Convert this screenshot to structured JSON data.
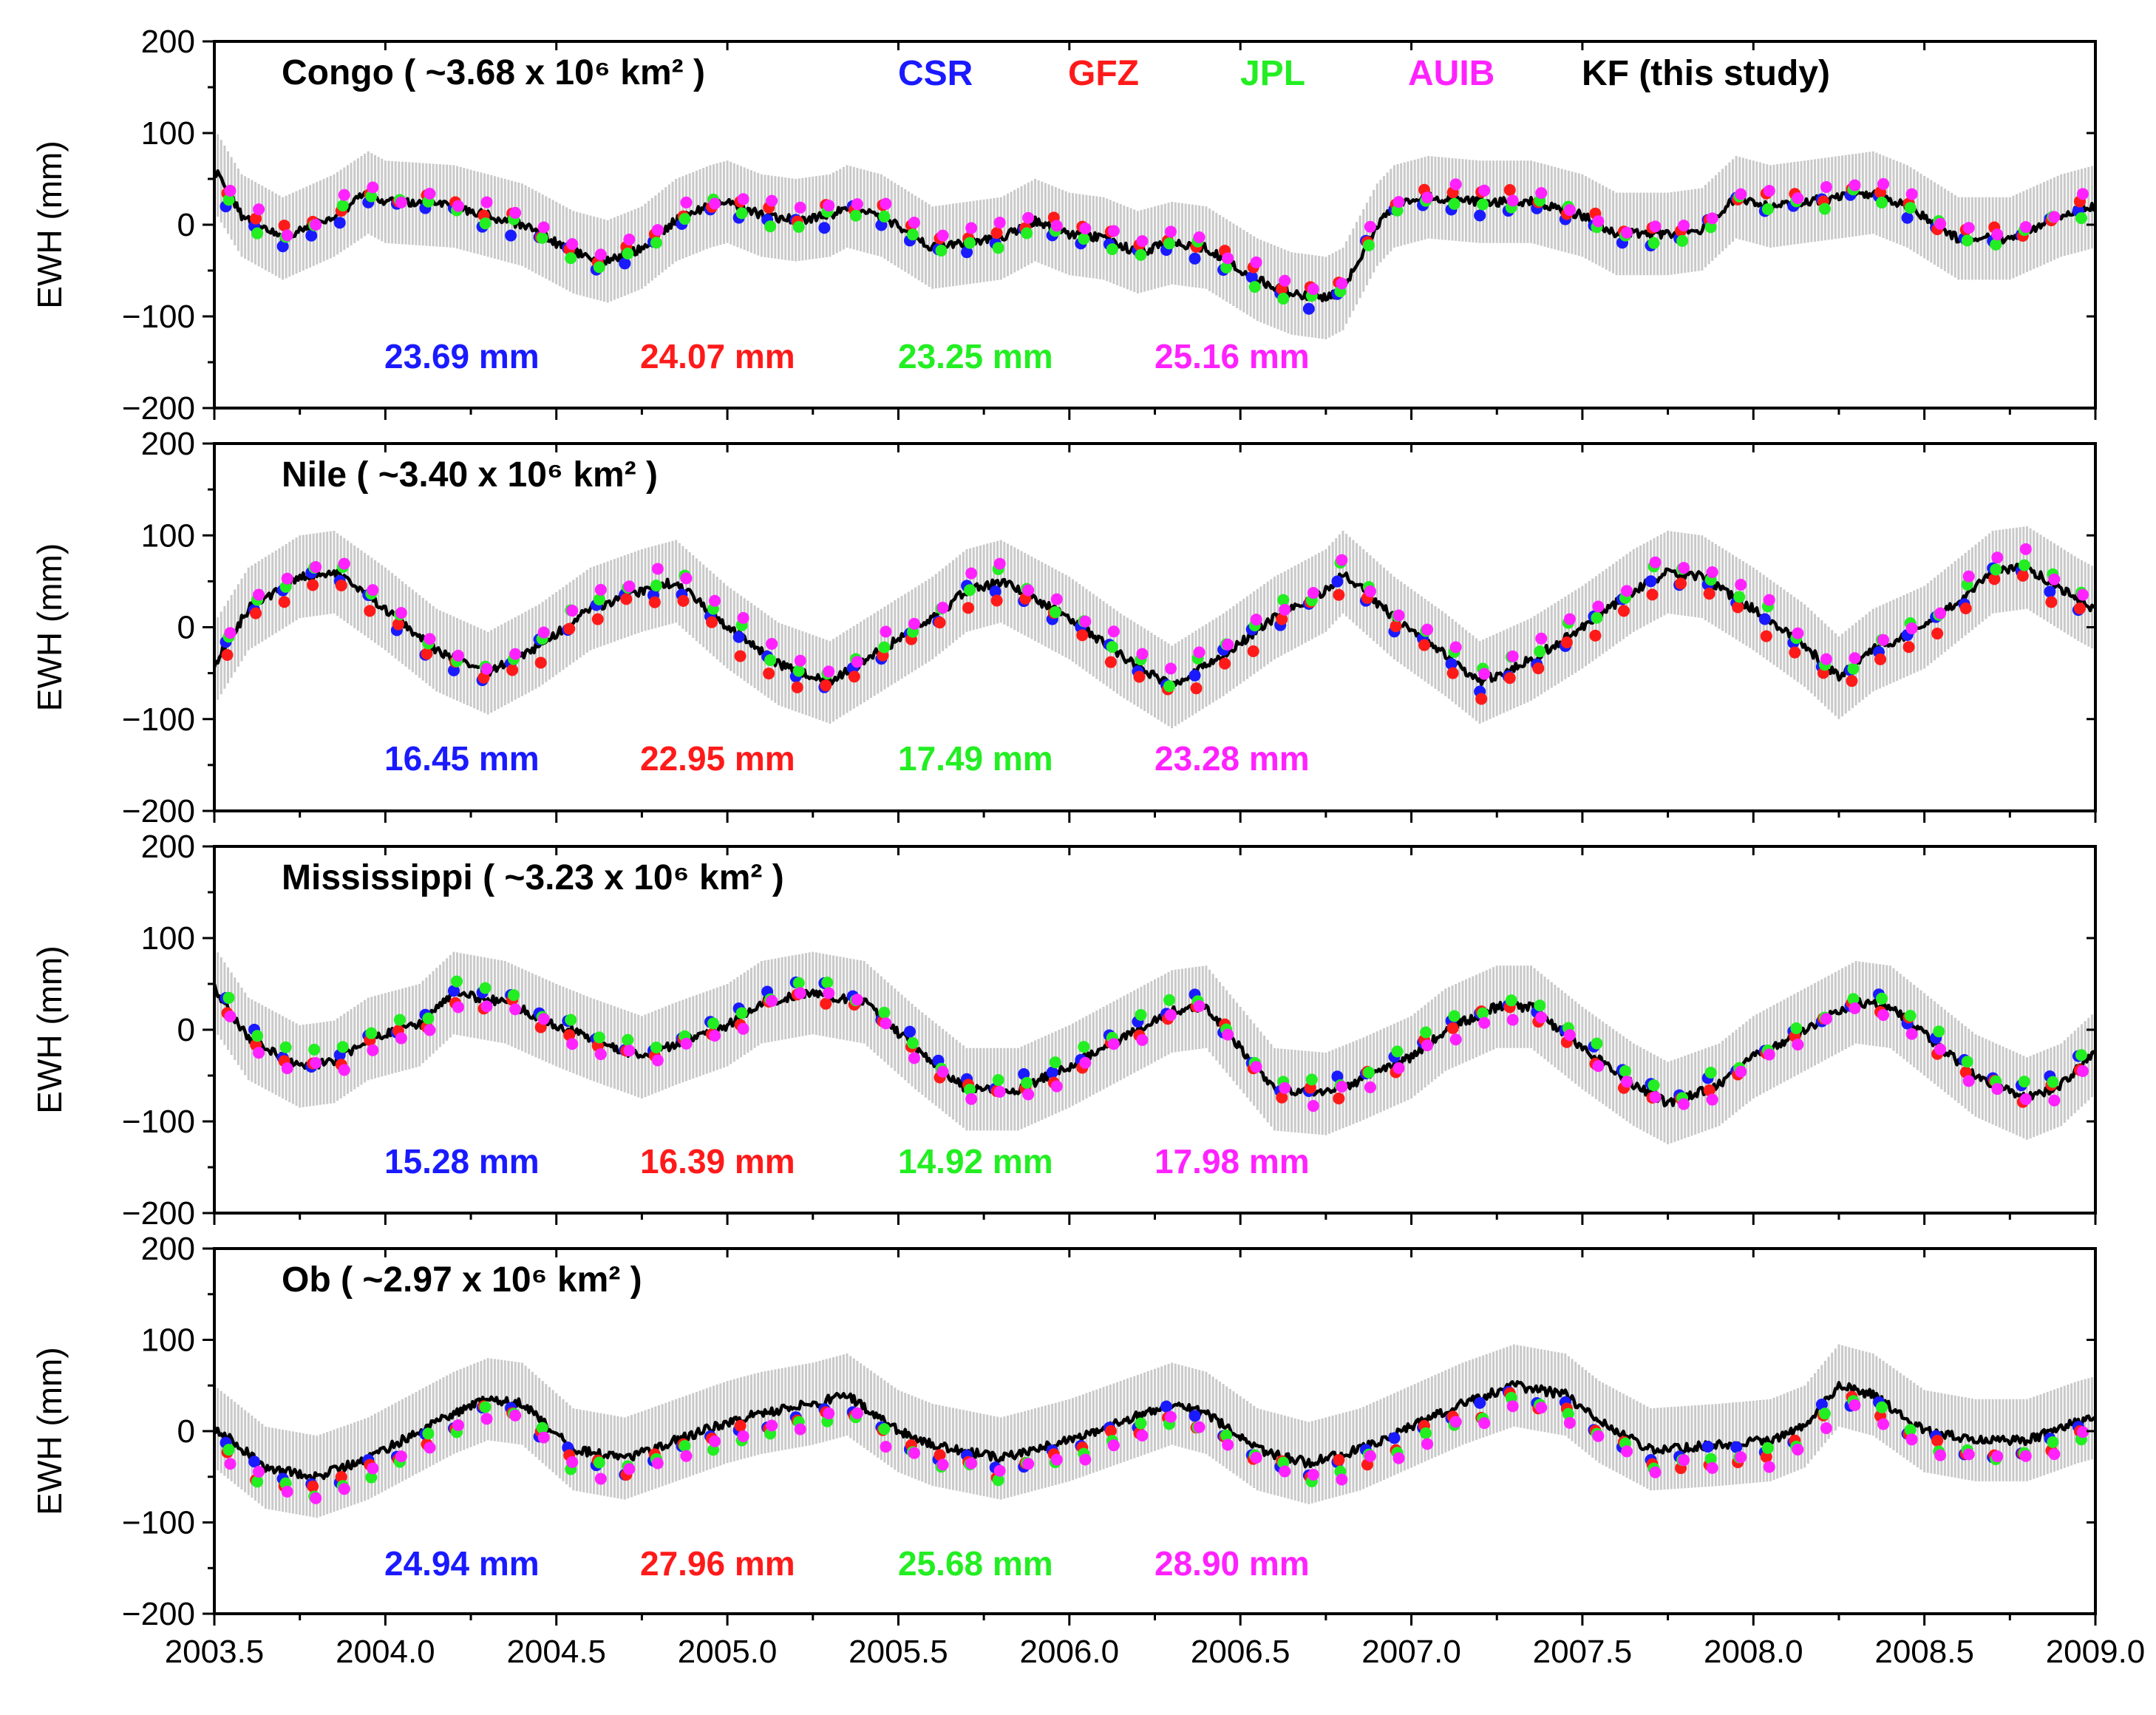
{
  "colors": {
    "CSR": "#1a1aff",
    "GFZ": "#ff1a1a",
    "JPL": "#22ee22",
    "AUIB": "#ff22ff",
    "KF": "#000000"
  },
  "legend": [
    {
      "key": "CSR",
      "label": "CSR"
    },
    {
      "key": "GFZ",
      "label": "GFZ"
    },
    {
      "key": "JPL",
      "label": "JPL"
    },
    {
      "key": "AUIB",
      "label": "AUIB"
    },
    {
      "key": "KF",
      "label": "KF (this study)"
    }
  ],
  "chart_data": [
    {
      "type": "line",
      "basin": "Congo",
      "title": "Congo ( ~3.68 x 10⁶ km² )",
      "xlabel": "",
      "ylabel": "EWH (mm)",
      "xlim": [
        2003.5,
        2009.0
      ],
      "ylim": [
        -200,
        200
      ],
      "x_ticks": [
        "2003.5",
        "2004.0",
        "2004.5",
        "2005.0",
        "2005.5",
        "2006.0",
        "2006.5",
        "2007.0",
        "2007.5",
        "2008.0",
        "2008.5",
        "2009.0"
      ],
      "y_ticks": [
        "200",
        "100",
        "0",
        "−100",
        "−200"
      ],
      "error_band_mm": 45,
      "kf_anchors": [
        [
          2003.5,
          60
        ],
        [
          2003.58,
          10
        ],
        [
          2003.7,
          -15
        ],
        [
          2003.85,
          10
        ],
        [
          2003.95,
          35
        ],
        [
          2004.0,
          25
        ],
        [
          2004.2,
          20
        ],
        [
          2004.4,
          0
        ],
        [
          2004.55,
          -30
        ],
        [
          2004.65,
          -40
        ],
        [
          2004.75,
          -25
        ],
        [
          2004.85,
          5
        ],
        [
          2004.95,
          20
        ],
        [
          2005.0,
          25
        ],
        [
          2005.1,
          10
        ],
        [
          2005.2,
          5
        ],
        [
          2005.3,
          10
        ],
        [
          2005.35,
          20
        ],
        [
          2005.45,
          10
        ],
        [
          2005.6,
          -25
        ],
        [
          2005.7,
          -20
        ],
        [
          2005.8,
          -15
        ],
        [
          2005.9,
          5
        ],
        [
          2006.0,
          -10
        ],
        [
          2006.1,
          -15
        ],
        [
          2006.2,
          -30
        ],
        [
          2006.3,
          -20
        ],
        [
          2006.4,
          -25
        ],
        [
          2006.55,
          -60
        ],
        [
          2006.65,
          -75
        ],
        [
          2006.75,
          -80
        ],
        [
          2006.8,
          -70
        ],
        [
          2006.9,
          0
        ],
        [
          2006.95,
          20
        ],
        [
          2007.05,
          30
        ],
        [
          2007.2,
          25
        ],
        [
          2007.35,
          25
        ],
        [
          2007.5,
          10
        ],
        [
          2007.6,
          -10
        ],
        [
          2007.75,
          -10
        ],
        [
          2007.85,
          -5
        ],
        [
          2007.95,
          30
        ],
        [
          2008.05,
          20
        ],
        [
          2008.15,
          25
        ],
        [
          2008.25,
          30
        ],
        [
          2008.35,
          35
        ],
        [
          2008.45,
          20
        ],
        [
          2008.6,
          -15
        ],
        [
          2008.75,
          -15
        ],
        [
          2008.9,
          10
        ],
        [
          2009.0,
          20
        ]
      ],
      "obs_offsets": {
        "CSR": -6,
        "GFZ": 5,
        "JPL": -2,
        "AUIB": 9
      },
      "rms": {
        "CSR": "23.69 mm",
        "GFZ": "24.07 mm",
        "JPL": "23.25 mm",
        "AUIB": "25.16 mm"
      }
    },
    {
      "type": "line",
      "basin": "Nile",
      "title": "Nile ( ~3.40 x 10⁶ km² )",
      "xlabel": "",
      "ylabel": "EWH (mm)",
      "xlim": [
        2003.5,
        2009.0
      ],
      "ylim": [
        -200,
        200
      ],
      "x_ticks": [
        "2003.5",
        "2004.0",
        "2004.5",
        "2005.0",
        "2005.5",
        "2006.0",
        "2006.5",
        "2007.0",
        "2007.5",
        "2008.0",
        "2008.5",
        "2009.0"
      ],
      "y_ticks": [
        "200",
        "100",
        "0",
        "−100",
        "−200"
      ],
      "error_band_mm": 45,
      "kf_anchors": [
        [
          2003.5,
          -40
        ],
        [
          2003.6,
          20
        ],
        [
          2003.75,
          55
        ],
        [
          2003.85,
          60
        ],
        [
          2004.0,
          20
        ],
        [
          2004.15,
          -25
        ],
        [
          2004.3,
          -50
        ],
        [
          2004.45,
          -20
        ],
        [
          2004.6,
          20
        ],
        [
          2004.75,
          40
        ],
        [
          2004.85,
          50
        ],
        [
          2005.0,
          0
        ],
        [
          2005.15,
          -40
        ],
        [
          2005.3,
          -60
        ],
        [
          2005.45,
          -25
        ],
        [
          2005.6,
          10
        ],
        [
          2005.7,
          40
        ],
        [
          2005.8,
          50
        ],
        [
          2006.0,
          10
        ],
        [
          2006.15,
          -30
        ],
        [
          2006.3,
          -65
        ],
        [
          2006.45,
          -30
        ],
        [
          2006.6,
          10
        ],
        [
          2006.75,
          40
        ],
        [
          2006.8,
          60
        ],
        [
          2006.95,
          10
        ],
        [
          2007.1,
          -30
        ],
        [
          2007.2,
          -60
        ],
        [
          2007.35,
          -35
        ],
        [
          2007.5,
          0
        ],
        [
          2007.65,
          40
        ],
        [
          2007.75,
          60
        ],
        [
          2007.85,
          55
        ],
        [
          2008.0,
          20
        ],
        [
          2008.15,
          -20
        ],
        [
          2008.25,
          -55
        ],
        [
          2008.35,
          -25
        ],
        [
          2008.5,
          0
        ],
        [
          2008.6,
          30
        ],
        [
          2008.7,
          60
        ],
        [
          2008.8,
          65
        ],
        [
          2008.95,
          30
        ],
        [
          2009.0,
          20
        ]
      ],
      "obs_offsets": {
        "CSR": -4,
        "GFZ": -12,
        "JPL": 6,
        "AUIB": 12
      },
      "rms": {
        "CSR": "16.45 mm",
        "GFZ": "22.95 mm",
        "JPL": "17.49 mm",
        "AUIB": "23.28 mm"
      }
    },
    {
      "type": "line",
      "basin": "Mississippi",
      "title": "Mississippi ( ~3.23 x 10⁶ km² )",
      "xlabel": "",
      "ylabel": "EWH (mm)",
      "xlim": [
        2003.5,
        2009.0
      ],
      "ylim": [
        -200,
        200
      ],
      "x_ticks": [
        "2003.5",
        "2004.0",
        "2004.5",
        "2005.0",
        "2005.5",
        "2006.0",
        "2006.5",
        "2007.0",
        "2007.5",
        "2008.0",
        "2008.5",
        "2009.0"
      ],
      "y_ticks": [
        "200",
        "100",
        "0",
        "−100",
        "−200"
      ],
      "error_band_mm": 45,
      "kf_anchors": [
        [
          2003.5,
          45
        ],
        [
          2003.6,
          -10
        ],
        [
          2003.75,
          -40
        ],
        [
          2003.85,
          -35
        ],
        [
          2003.95,
          -10
        ],
        [
          2004.1,
          5
        ],
        [
          2004.2,
          40
        ],
        [
          2004.35,
          30
        ],
        [
          2004.5,
          5
        ],
        [
          2004.6,
          -10
        ],
        [
          2004.75,
          -30
        ],
        [
          2004.85,
          -15
        ],
        [
          2005.0,
          5
        ],
        [
          2005.1,
          30
        ],
        [
          2005.25,
          40
        ],
        [
          2005.4,
          30
        ],
        [
          2005.55,
          -20
        ],
        [
          2005.7,
          -65
        ],
        [
          2005.85,
          -65
        ],
        [
          2006.0,
          -40
        ],
        [
          2006.15,
          -10
        ],
        [
          2006.3,
          20
        ],
        [
          2006.4,
          25
        ],
        [
          2006.5,
          -20
        ],
        [
          2006.6,
          -65
        ],
        [
          2006.75,
          -70
        ],
        [
          2006.85,
          -55
        ],
        [
          2007.0,
          -30
        ],
        [
          2007.1,
          0
        ],
        [
          2007.25,
          25
        ],
        [
          2007.35,
          25
        ],
        [
          2007.5,
          -20
        ],
        [
          2007.65,
          -60
        ],
        [
          2007.75,
          -80
        ],
        [
          2007.9,
          -60
        ],
        [
          2008.0,
          -30
        ],
        [
          2008.15,
          0
        ],
        [
          2008.3,
          30
        ],
        [
          2008.4,
          25
        ],
        [
          2008.55,
          -20
        ],
        [
          2008.65,
          -50
        ],
        [
          2008.8,
          -75
        ],
        [
          2008.9,
          -60
        ],
        [
          2009.0,
          -25
        ]
      ],
      "obs_offsets": {
        "CSR": 6,
        "GFZ": -2,
        "JPL": 8,
        "AUIB": -6
      },
      "rms": {
        "CSR": "15.28 mm",
        "GFZ": "16.39 mm",
        "JPL": "14.92 mm",
        "AUIB": "17.98 mm"
      }
    },
    {
      "type": "line",
      "basin": "Ob",
      "title": "Ob ( ~2.97 x 10⁶ km² )",
      "xlabel": "",
      "ylabel": "EWH (mm)",
      "xlim": [
        2003.5,
        2009.0
      ],
      "ylim": [
        -200,
        200
      ],
      "x_ticks": [
        "2003.5",
        "2004.0",
        "2004.5",
        "2005.0",
        "2005.5",
        "2006.0",
        "2006.5",
        "2007.0",
        "2007.5",
        "2008.0",
        "2008.5",
        "2009.0"
      ],
      "y_ticks": [
        "200",
        "100",
        "0",
        "−100",
        "−200"
      ],
      "error_band_mm": 45,
      "kf_anchors": [
        [
          2003.5,
          5
        ],
        [
          2003.65,
          -40
        ],
        [
          2003.8,
          -50
        ],
        [
          2003.95,
          -30
        ],
        [
          2004.1,
          0
        ],
        [
          2004.2,
          20
        ],
        [
          2004.3,
          35
        ],
        [
          2004.4,
          30
        ],
        [
          2004.55,
          -20
        ],
        [
          2004.7,
          -30
        ],
        [
          2004.85,
          -10
        ],
        [
          2005.0,
          10
        ],
        [
          2005.1,
          20
        ],
        [
          2005.25,
          30
        ],
        [
          2005.35,
          40
        ],
        [
          2005.5,
          0
        ],
        [
          2005.6,
          -15
        ],
        [
          2005.8,
          -30
        ],
        [
          2006.0,
          -10
        ],
        [
          2006.15,
          10
        ],
        [
          2006.3,
          30
        ],
        [
          2006.4,
          20
        ],
        [
          2006.55,
          -20
        ],
        [
          2006.7,
          -35
        ],
        [
          2006.85,
          -20
        ],
        [
          2007.0,
          5
        ],
        [
          2007.15,
          30
        ],
        [
          2007.3,
          50
        ],
        [
          2007.45,
          40
        ],
        [
          2007.55,
          10
        ],
        [
          2007.7,
          -20
        ],
        [
          2007.9,
          -15
        ],
        [
          2008.05,
          -10
        ],
        [
          2008.15,
          5
        ],
        [
          2008.25,
          50
        ],
        [
          2008.35,
          40
        ],
        [
          2008.5,
          0
        ],
        [
          2008.65,
          -10
        ],
        [
          2008.8,
          -10
        ],
        [
          2008.95,
          10
        ],
        [
          2009.0,
          15
        ]
      ],
      "obs_offsets": {
        "CSR": -10,
        "GFZ": -14,
        "JPL": -16,
        "AUIB": -20
      },
      "rms": {
        "CSR": "24.94 mm",
        "GFZ": "27.96 mm",
        "JPL": "25.68 mm",
        "AUIB": "28.90 mm"
      }
    }
  ]
}
